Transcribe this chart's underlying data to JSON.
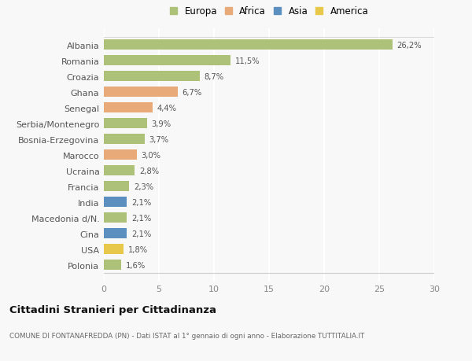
{
  "countries": [
    "Albania",
    "Romania",
    "Croazia",
    "Ghana",
    "Senegal",
    "Serbia/Montenegro",
    "Bosnia-Erzegovina",
    "Marocco",
    "Ucraina",
    "Francia",
    "India",
    "Macedonia d/N.",
    "Cina",
    "USA",
    "Polonia"
  ],
  "values": [
    26.2,
    11.5,
    8.7,
    6.7,
    4.4,
    3.9,
    3.7,
    3.0,
    2.8,
    2.3,
    2.1,
    2.1,
    2.1,
    1.8,
    1.6
  ],
  "labels": [
    "26,2%",
    "11,5%",
    "8,7%",
    "6,7%",
    "4,4%",
    "3,9%",
    "3,7%",
    "3,0%",
    "2,8%",
    "2,3%",
    "2,1%",
    "2,1%",
    "2,1%",
    "1,8%",
    "1,6%"
  ],
  "continents": [
    "Europa",
    "Europa",
    "Europa",
    "Africa",
    "Africa",
    "Europa",
    "Europa",
    "Africa",
    "Europa",
    "Europa",
    "Asia",
    "Europa",
    "Asia",
    "America",
    "Europa"
  ],
  "colors": {
    "Europa": "#adc178",
    "Africa": "#e8aa78",
    "Asia": "#5b8fc0",
    "America": "#e8c84a"
  },
  "xlim": [
    0,
    30
  ],
  "xticks": [
    0,
    5,
    10,
    15,
    20,
    25,
    30
  ],
  "title": "Cittadini Stranieri per Cittadinanza",
  "subtitle": "COMUNE DI FONTANAFREDDA (PN) - Dati ISTAT al 1° gennaio di ogni anno - Elaborazione TUTTITALIA.IT",
  "bg_color": "#f8f8f8",
  "grid_color": "#ffffff",
  "bar_height": 0.65,
  "legend_entries": [
    "Europa",
    "Africa",
    "Asia",
    "America"
  ]
}
